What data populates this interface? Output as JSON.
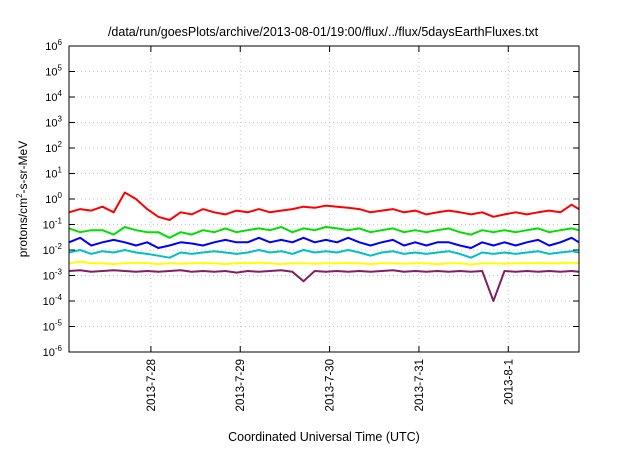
{
  "chart_data": {
    "type": "line",
    "title": "/data/run/goesPlots/archive/2013-08-01/19:00/flux/../flux/5daysEarthFluxes.txt",
    "xlabel": "Coordinated Universal Time (UTC)",
    "ylabel_base": "protons/cm",
    "ylabel_exp": "2",
    "ylabel_rest": "-s-sr-MeV",
    "y_scale": "log",
    "ylim": [
      1e-06,
      1000000.0
    ],
    "xlim": [
      "2013-07-27 02:00",
      "2013-08-01 19:00"
    ],
    "grid": true,
    "x_ticks": [
      {
        "t": "2013-07-28 00:00",
        "label": "2013-7-28"
      },
      {
        "t": "2013-07-29 00:00",
        "label": "2013-7-29"
      },
      {
        "t": "2013-07-30 00:00",
        "label": "2013-7-30"
      },
      {
        "t": "2013-07-31 00:00",
        "label": "2013-7-31"
      },
      {
        "t": "2013-08-01 00:00",
        "label": "2013-8-1"
      }
    ],
    "y_ticks": [
      {
        "v": 1e-06,
        "base": "10",
        "exp": "-6"
      },
      {
        "v": 1e-05,
        "base": "10",
        "exp": "-5"
      },
      {
        "v": 0.0001,
        "base": "10",
        "exp": "-4"
      },
      {
        "v": 0.001,
        "base": "10",
        "exp": "-3"
      },
      {
        "v": 0.01,
        "base": "10",
        "exp": "-2"
      },
      {
        "v": 0.1,
        "base": "10",
        "exp": "-1"
      },
      {
        "v": 1.0,
        "base": "10",
        "exp": "0"
      },
      {
        "v": 10.0,
        "base": "10",
        "exp": "1"
      },
      {
        "v": 100.0,
        "base": "10",
        "exp": "2"
      },
      {
        "v": 1000.0,
        "base": "10",
        "exp": "3"
      },
      {
        "v": 10000.0,
        "base": "10",
        "exp": "4"
      },
      {
        "v": 100000.0,
        "base": "10",
        "exp": "5"
      },
      {
        "v": 1000000.0,
        "base": "10",
        "exp": "6"
      }
    ],
    "x": [
      "2013-07-27 02:00",
      "2013-07-27 05:00",
      "2013-07-27 08:00",
      "2013-07-27 11:00",
      "2013-07-27 14:00",
      "2013-07-27 17:00",
      "2013-07-27 20:00",
      "2013-07-27 23:00",
      "2013-07-28 02:00",
      "2013-07-28 05:00",
      "2013-07-28 08:00",
      "2013-07-28 11:00",
      "2013-07-28 14:00",
      "2013-07-28 17:00",
      "2013-07-28 20:00",
      "2013-07-28 23:00",
      "2013-07-29 02:00",
      "2013-07-29 05:00",
      "2013-07-29 08:00",
      "2013-07-29 11:00",
      "2013-07-29 14:00",
      "2013-07-29 17:00",
      "2013-07-29 20:00",
      "2013-07-29 23:00",
      "2013-07-30 02:00",
      "2013-07-30 05:00",
      "2013-07-30 08:00",
      "2013-07-30 11:00",
      "2013-07-30 14:00",
      "2013-07-30 17:00",
      "2013-07-30 20:00",
      "2013-07-30 23:00",
      "2013-07-31 02:00",
      "2013-07-31 05:00",
      "2013-07-31 08:00",
      "2013-07-31 11:00",
      "2013-07-31 14:00",
      "2013-07-31 17:00",
      "2013-07-31 20:00",
      "2013-07-31 23:00",
      "2013-08-01 02:00",
      "2013-08-01 05:00",
      "2013-08-01 08:00",
      "2013-08-01 11:00",
      "2013-08-01 14:00",
      "2013-08-01 17:00",
      "2013-08-01 19:00"
    ],
    "series": [
      {
        "color": "#ff0000",
        "values": [
          0.3,
          0.4,
          0.35,
          0.5,
          0.3,
          1.8,
          1.0,
          0.4,
          0.2,
          0.15,
          0.3,
          0.25,
          0.4,
          0.3,
          0.25,
          0.35,
          0.3,
          0.4,
          0.3,
          0.35,
          0.4,
          0.5,
          0.45,
          0.55,
          0.5,
          0.45,
          0.4,
          0.3,
          0.35,
          0.4,
          0.3,
          0.35,
          0.25,
          0.3,
          0.35,
          0.3,
          0.25,
          0.3,
          0.2,
          0.25,
          0.3,
          0.25,
          0.3,
          0.35,
          0.3,
          0.6,
          0.4
        ]
      },
      {
        "color": "#00e000",
        "values": [
          0.07,
          0.05,
          0.06,
          0.06,
          0.04,
          0.08,
          0.06,
          0.05,
          0.05,
          0.03,
          0.05,
          0.04,
          0.06,
          0.05,
          0.07,
          0.05,
          0.06,
          0.07,
          0.06,
          0.08,
          0.05,
          0.07,
          0.06,
          0.08,
          0.07,
          0.06,
          0.07,
          0.05,
          0.06,
          0.07,
          0.05,
          0.06,
          0.05,
          0.06,
          0.07,
          0.05,
          0.04,
          0.06,
          0.05,
          0.06,
          0.05,
          0.06,
          0.07,
          0.05,
          0.06,
          0.07,
          0.06
        ]
      },
      {
        "color": "#0000ff",
        "values": [
          0.02,
          0.03,
          0.015,
          0.02,
          0.025,
          0.02,
          0.015,
          0.02,
          0.012,
          0.015,
          0.02,
          0.018,
          0.015,
          0.02,
          0.025,
          0.02,
          0.02,
          0.03,
          0.02,
          0.025,
          0.02,
          0.03,
          0.02,
          0.025,
          0.02,
          0.03,
          0.02,
          0.015,
          0.02,
          0.025,
          0.015,
          0.02,
          0.015,
          0.02,
          0.02,
          0.015,
          0.012,
          0.02,
          0.015,
          0.02,
          0.015,
          0.02,
          0.025,
          0.015,
          0.02,
          0.03,
          0.02
        ]
      },
      {
        "color": "#00c0c0",
        "values": [
          0.008,
          0.01,
          0.007,
          0.009,
          0.008,
          0.01,
          0.008,
          0.007,
          0.006,
          0.005,
          0.008,
          0.007,
          0.008,
          0.009,
          0.008,
          0.007,
          0.008,
          0.01,
          0.008,
          0.009,
          0.007,
          0.01,
          0.008,
          0.009,
          0.008,
          0.01,
          0.008,
          0.006,
          0.008,
          0.009,
          0.007,
          0.008,
          0.007,
          0.008,
          0.009,
          0.007,
          0.005,
          0.008,
          0.007,
          0.008,
          0.007,
          0.008,
          0.009,
          0.007,
          0.008,
          0.009,
          0.008
        ]
      },
      {
        "color": "#ffff00",
        "values": [
          0.003,
          0.0035,
          0.003,
          0.003,
          0.0028,
          0.003,
          0.0032,
          0.003,
          0.0028,
          0.003,
          0.0029,
          0.003,
          0.0031,
          0.003,
          0.0028,
          0.003,
          0.003,
          0.0032,
          0.003,
          0.0028,
          0.003,
          0.003,
          0.0029,
          0.003,
          0.003,
          0.0031,
          0.003,
          0.0028,
          0.003,
          0.003,
          0.0029,
          0.003,
          0.003,
          0.0028,
          0.003,
          0.003,
          0.0027,
          0.003,
          0.003,
          0.0029,
          0.003,
          0.003,
          0.0031,
          0.003,
          0.003,
          0.0032,
          0.003
        ]
      },
      {
        "color": "#802060",
        "values": [
          0.0015,
          0.0016,
          0.0014,
          0.0015,
          0.0016,
          0.0015,
          0.0014,
          0.0015,
          0.0014,
          0.0015,
          0.0016,
          0.0014,
          0.0015,
          0.0014,
          0.0015,
          0.0013,
          0.0015,
          0.0014,
          0.0015,
          0.0016,
          0.0014,
          0.0006,
          0.0015,
          0.0014,
          0.0015,
          0.0014,
          0.0015,
          0.0014,
          0.0015,
          0.0016,
          0.0014,
          0.0015,
          0.0014,
          0.0015,
          0.0014,
          0.0015,
          0.0014,
          0.0015,
          0.0001,
          0.0015,
          0.0014,
          0.0015,
          0.0014,
          0.0015,
          0.0014,
          0.0015,
          0.0014
        ]
      }
    ]
  }
}
